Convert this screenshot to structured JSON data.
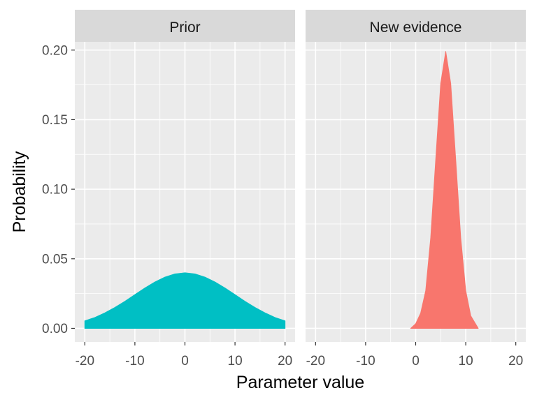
{
  "chart_data": {
    "type": "area",
    "xlabel": "Parameter value",
    "ylabel": "Probability",
    "xlim": [
      -22,
      22
    ],
    "ylim": [
      -0.0098,
      0.2059
    ],
    "x_ticks": [
      -20,
      -10,
      0,
      10,
      20
    ],
    "x_tick_labels": [
      "-20",
      "-10",
      "0",
      "10",
      "20"
    ],
    "y_ticks": [
      0.0,
      0.05,
      0.1,
      0.15,
      0.2
    ],
    "y_tick_labels": [
      "0.00",
      "0.05",
      "0.10",
      "0.15",
      "0.20"
    ],
    "grid": true,
    "legend": "none",
    "panels": [
      {
        "strip": "Prior",
        "color": "#00BFC4",
        "series": {
          "x": [
            -20,
            -18,
            -16,
            -14,
            -12,
            -10,
            -8,
            -6,
            -4,
            -2,
            0,
            2,
            4,
            6,
            8,
            10,
            12,
            14,
            16,
            18,
            20
          ],
          "values": [
            0.0054,
            0.0078,
            0.0111,
            0.015,
            0.0194,
            0.0242,
            0.029,
            0.0333,
            0.0368,
            0.0391,
            0.0399,
            0.0391,
            0.0368,
            0.0333,
            0.029,
            0.0242,
            0.0194,
            0.015,
            0.0111,
            0.0078,
            0.0054
          ]
        }
      },
      {
        "strip": "New evidence",
        "color": "#F8766D",
        "series": {
          "x": [
            -1,
            0,
            1,
            2,
            3,
            4,
            5,
            6,
            7,
            8,
            9,
            10,
            11,
            12.5
          ],
          "values": [
            0.0,
            0.0033,
            0.011,
            0.027,
            0.065,
            0.121,
            0.176,
            0.199,
            0.176,
            0.121,
            0.065,
            0.027,
            0.009,
            0.0
          ]
        }
      }
    ]
  }
}
